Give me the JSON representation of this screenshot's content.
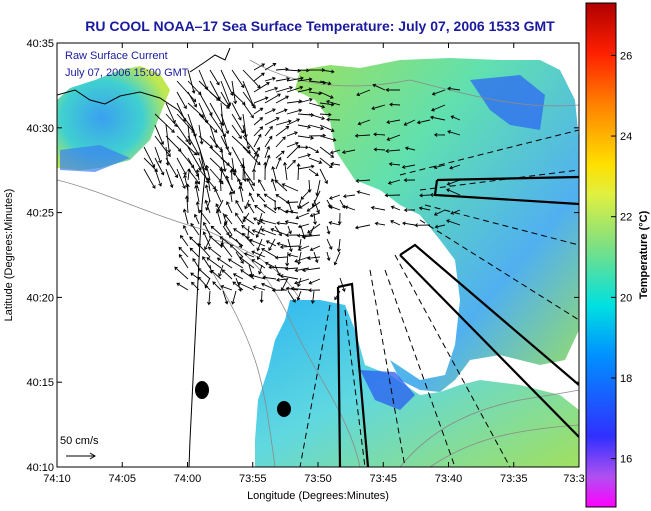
{
  "chart_data": {
    "type": "heatmap",
    "title": "RU COOL  NOAA–17  Sea Surface Temperature:  July 07, 2006 1533 GMT",
    "xlabel": "Longitude (Degrees:Minutes)",
    "ylabel": "Latitude (Degrees:Minutes)",
    "x_ticks": [
      "74:10",
      "74:05",
      "74:00",
      "73:55",
      "73:50",
      "73:45",
      "73:40",
      "73:35",
      "73:3"
    ],
    "y_ticks": [
      "40:35",
      "40:30",
      "40:25",
      "40:20",
      "40:15",
      "40:10"
    ],
    "xlim": [
      -74.1667,
      -73.5
    ],
    "ylim": [
      40.1667,
      40.5833
    ],
    "colorbar": {
      "label": "Temperature (°C)",
      "ticks": [
        "16",
        "18",
        "20",
        "22",
        "24",
        "26"
      ],
      "range": [
        14.8,
        27.3
      ]
    },
    "annotations": {
      "overlay_title": "Raw Surface Current",
      "overlay_time": "July 07, 2006 15:00 GMT",
      "scale_label": "50 cm/s"
    },
    "colors": {
      "title": "#1a1aa0",
      "sst_warm": "#9be060",
      "sst_mid": "#40d0d0",
      "sst_cool": "#3070f0",
      "vectors": "#000000",
      "bathymetry": "#8a8a8a"
    },
    "sst_regions": [
      {
        "name": "northwest",
        "level": "mid",
        "lon": [
          -74.167,
          -74.04
        ],
        "lat": [
          40.42,
          40.54
        ]
      },
      {
        "name": "northeast",
        "level": "mixed",
        "lon": [
          -73.86,
          -73.52
        ],
        "lat": [
          40.33,
          40.555
        ]
      },
      {
        "name": "south",
        "level": "mid",
        "lon": [
          -73.93,
          -73.67
        ],
        "lat": [
          40.17,
          40.33
        ]
      }
    ]
  }
}
